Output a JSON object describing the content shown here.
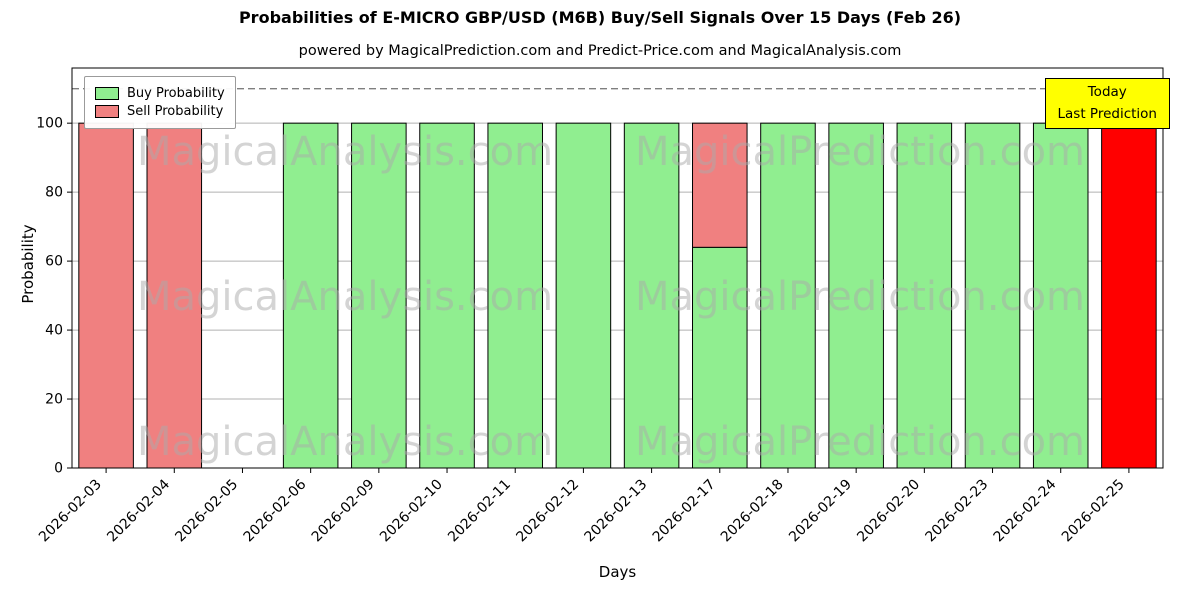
{
  "chart_data": {
    "type": "bar",
    "stacked": true,
    "title": "Probabilities of E-MICRO GBP/USD (M6B) Buy/Sell Signals Over 15 Days (Feb 26)",
    "subtitle": "powered by MagicalPrediction.com and Predict-Price.com and MagicalAnalysis.com",
    "xlabel": "Days",
    "ylabel": "Probability",
    "ylim": [
      0,
      116
    ],
    "yticks": [
      0,
      20,
      40,
      60,
      80,
      100
    ],
    "grid": "horizontal",
    "grid_color": "#b0b0b0",
    "dashed_line_y": 110,
    "dashed_line_color": "#7f7f7f",
    "legend_position": "upper left",
    "categories": [
      "2026-02-03",
      "2026-02-04",
      "2026-02-05",
      "2026-02-06",
      "2026-02-09",
      "2026-02-10",
      "2026-02-11",
      "2026-02-12",
      "2026-02-13",
      "2026-02-17",
      "2026-02-18",
      "2026-02-19",
      "2026-02-20",
      "2026-02-23",
      "2026-02-24",
      "2026-02-25"
    ],
    "series": [
      {
        "name": "Buy Probability",
        "color": "#90EE90",
        "values": [
          0,
          0,
          0,
          100,
          100,
          100,
          100,
          100,
          100,
          64,
          100,
          100,
          100,
          100,
          100,
          0
        ]
      },
      {
        "name": "Sell Probability",
        "color": "#F08080",
        "values": [
          100,
          100,
          0,
          0,
          0,
          0,
          0,
          0,
          0,
          36,
          0,
          0,
          0,
          0,
          0,
          100
        ]
      }
    ],
    "today": {
      "index": 15,
      "color": "#FF0000"
    }
  },
  "legend": {
    "items": [
      {
        "label": "Buy Probability",
        "color": "#90EE90"
      },
      {
        "label": "Sell Probability",
        "color": "#F08080"
      }
    ]
  },
  "annotation_box": {
    "lines": [
      "Today",
      "Last Prediction"
    ],
    "bg": "#FFFF00"
  },
  "watermarks": {
    "texts": [
      "MagicalAnalysis.com",
      "MagicalPrediction.com"
    ]
  }
}
